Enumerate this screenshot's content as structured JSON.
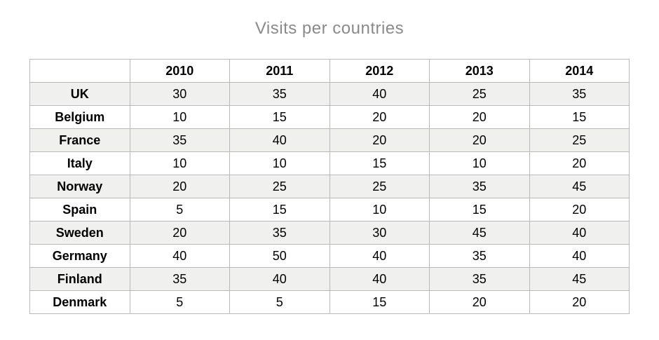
{
  "page": {
    "title": "Visits per countries"
  },
  "colors": {
    "title_text": "#8a8a8a",
    "stripe_background": "#f0f0ee",
    "table_border": "#b9b9b9",
    "cell_text": "#000000"
  },
  "chart_data": {
    "type": "table",
    "title": "Visits per countries",
    "columns": [
      "",
      "2010",
      "2011",
      "2012",
      "2013",
      "2014"
    ],
    "rows": [
      {
        "label": "UK",
        "values": [
          30,
          35,
          40,
          25,
          35
        ]
      },
      {
        "label": "Belgium",
        "values": [
          10,
          15,
          20,
          20,
          15
        ]
      },
      {
        "label": "France",
        "values": [
          35,
          40,
          20,
          20,
          25
        ]
      },
      {
        "label": "Italy",
        "values": [
          10,
          10,
          15,
          10,
          20
        ]
      },
      {
        "label": "Norway",
        "values": [
          20,
          25,
          25,
          35,
          45
        ]
      },
      {
        "label": "Spain",
        "values": [
          5,
          15,
          10,
          15,
          20
        ]
      },
      {
        "label": "Sweden",
        "values": [
          20,
          35,
          30,
          45,
          40
        ]
      },
      {
        "label": "Germany",
        "values": [
          40,
          50,
          40,
          35,
          40
        ]
      },
      {
        "label": "Finland",
        "values": [
          35,
          40,
          40,
          35,
          45
        ]
      },
      {
        "label": "Denmark",
        "values": [
          5,
          5,
          15,
          20,
          20
        ]
      }
    ],
    "layout": {
      "striped_rows": "odd data rows (UK, France, Norway, Sweden, Germany alt.)",
      "grid": true,
      "header_bold": true,
      "row_labels_bold": true
    }
  }
}
